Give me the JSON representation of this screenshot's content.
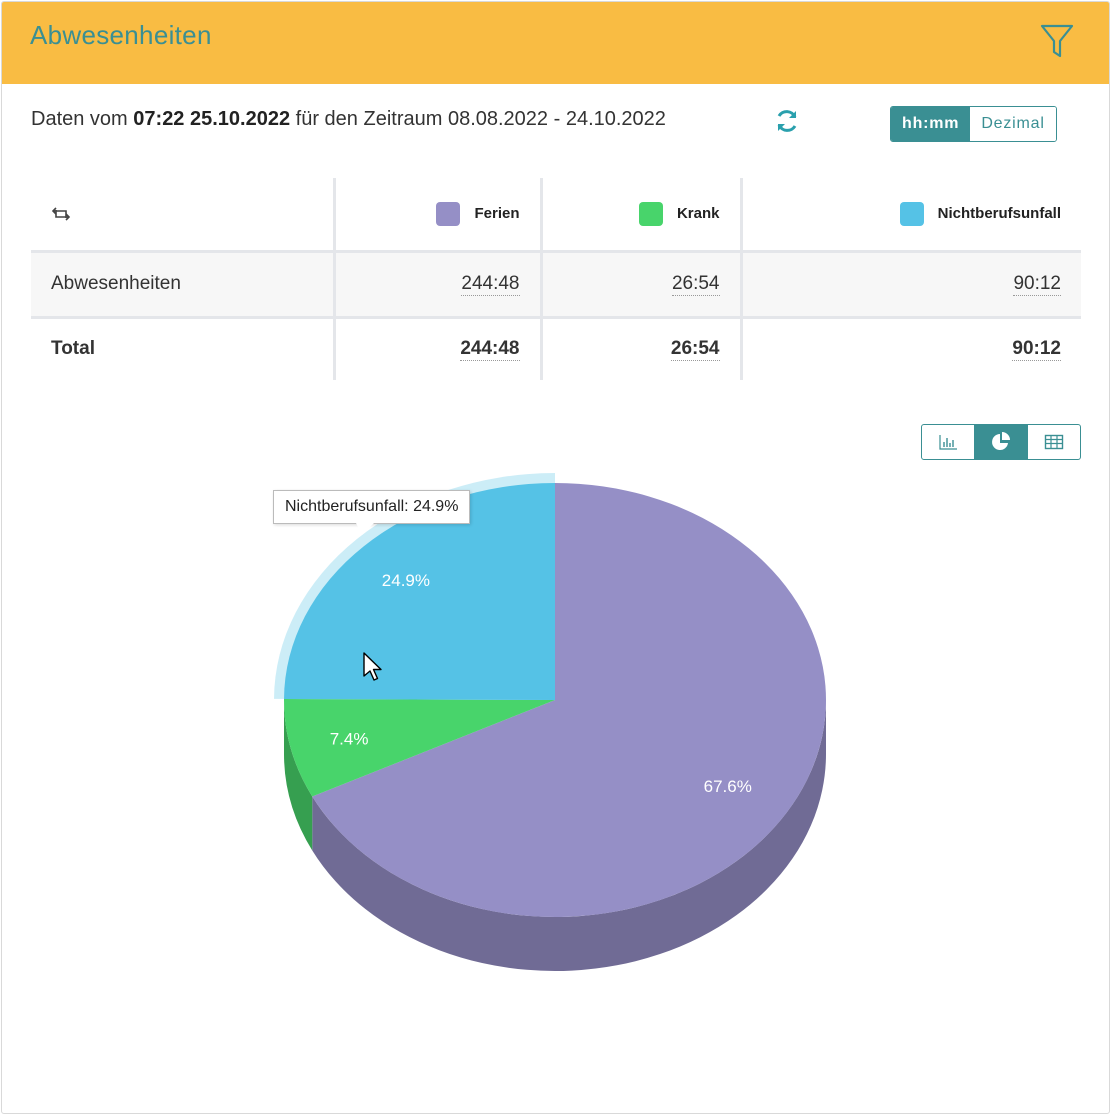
{
  "header": {
    "title": "Abwesenheiten",
    "filter_icon": "filter-icon"
  },
  "info": {
    "prefix": "Daten vom",
    "timestamp": "07:22 25.10.2022",
    "period_prefix": "für den Zeitraum",
    "period": "08.08.2022 - 24.10.2022"
  },
  "format_toggle": {
    "hhmm": "hh:mm",
    "decimal": "Dezimal",
    "selected": "hh:mm"
  },
  "table": {
    "columns": [
      {
        "label": "Ferien",
        "color": "#958fc6"
      },
      {
        "label": "Krank",
        "color": "#48d46b"
      },
      {
        "label": "Nichtberufsunfall",
        "color": "#55c2e6"
      }
    ],
    "rows": [
      {
        "label": "Abwesenheiten",
        "values": [
          "244:48",
          "26:54",
          "90:12"
        ]
      }
    ],
    "total": {
      "label": "Total",
      "values": [
        "244:48",
        "26:54",
        "90:12"
      ]
    }
  },
  "view_selector": {
    "options": [
      "bar-chart-icon",
      "pie-chart-icon",
      "table-icon"
    ],
    "selected": "pie-chart-icon"
  },
  "chart_data": {
    "type": "pie",
    "categories": [
      "Ferien",
      "Krank",
      "Nichtberufsunfall"
    ],
    "values": [
      67.6,
      7.4,
      24.9
    ],
    "labels": [
      "67.6%",
      "7.4%",
      "24.9%"
    ],
    "colors": [
      "#958fc6",
      "#48d46b",
      "#55c2e6"
    ],
    "tooltip": "Nichtberufsunfall: 24.9%"
  }
}
